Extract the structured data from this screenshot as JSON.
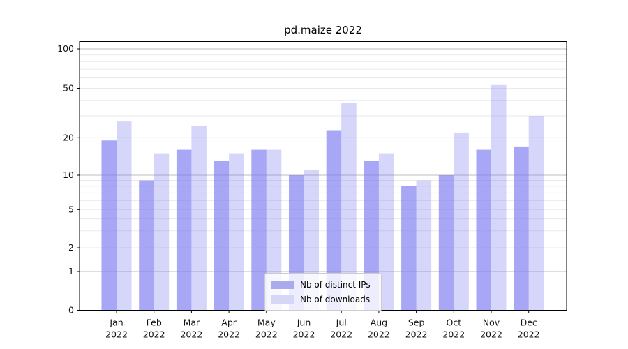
{
  "chart_data": {
    "type": "bar",
    "title": "pd.maize 2022",
    "categories": [
      "Jan",
      "Feb",
      "Mar",
      "Apr",
      "May",
      "Jun",
      "Jul",
      "Aug",
      "Sep",
      "Oct",
      "Nov",
      "Dec"
    ],
    "category_year": "2022",
    "series": [
      {
        "name": "Nb of distinct IPs",
        "fill": "rgba(120,120,240,0.65)",
        "swatch": "#aaaaee",
        "values": [
          19,
          9,
          16,
          13,
          16,
          10,
          23,
          13,
          8,
          10,
          16,
          17
        ]
      },
      {
        "name": "Nb of downloads",
        "fill": "rgba(120,120,240,0.30)",
        "swatch": "#d6d6f7",
        "values": [
          27,
          15,
          25,
          15,
          16,
          11,
          38,
          15,
          9,
          22,
          53,
          30
        ]
      }
    ],
    "yscale": "symlog",
    "yticks": [
      100,
      50,
      20,
      10,
      5,
      2,
      1,
      0
    ],
    "minor_gridlines": [
      3,
      4,
      6,
      7,
      8,
      9,
      30,
      40,
      60,
      70,
      80,
      90
    ],
    "major_gridlines": [
      1,
      10,
      100
    ],
    "ylim": [
      0,
      115
    ],
    "grid": true,
    "legend_position": "lower center",
    "colors": {
      "major_grid": "#bdbdbd",
      "minor_grid": "#eaeaea",
      "spine": "#000000",
      "text": "#111111"
    }
  }
}
